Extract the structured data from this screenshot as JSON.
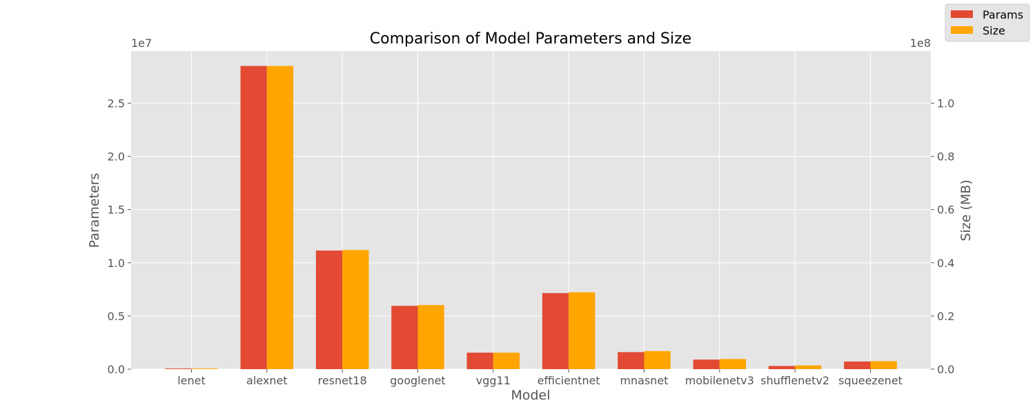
{
  "chart_data": {
    "type": "bar",
    "title": "Comparison of Model Parameters and Size",
    "xlabel": "Model",
    "ylabel_left": "Parameters",
    "ylabel_right": "Size (MB)",
    "left_offset_label": "1e7",
    "right_offset_label": "1e8",
    "ylim_left": [
      0,
      29900000
    ],
    "ylim_right": [
      0,
      119600000
    ],
    "left_ticks": [
      0,
      5000000,
      10000000,
      15000000,
      20000000,
      25000000
    ],
    "left_tick_labels": [
      "0.0",
      "0.5",
      "1.0",
      "1.5",
      "2.0",
      "2.5"
    ],
    "right_ticks": [
      0,
      20000000,
      40000000,
      60000000,
      80000000,
      100000000
    ],
    "right_tick_labels": [
      "0.0",
      "0.2",
      "0.4",
      "0.6",
      "0.8",
      "1.0"
    ],
    "categories": [
      "lenet",
      "alexnet",
      "resnet18",
      "googlenet",
      "vgg11",
      "efficientnet",
      "mnasnet",
      "mobilenetv3",
      "shufflenetv2",
      "squeezenet"
    ],
    "grid": true,
    "legend_position": "top-right",
    "series": [
      {
        "name": "Params",
        "axis": "left",
        "color": "#E24A33",
        "values": [
          60000,
          28500000,
          11150000,
          5950000,
          1550000,
          7150000,
          1600000,
          900000,
          300000,
          720000
        ]
      },
      {
        "name": "Size",
        "axis": "right",
        "color": "#FFA500",
        "values": [
          240000,
          114000000,
          44800000,
          24100000,
          6200000,
          28900000,
          6800000,
          3800000,
          1400000,
          3000000
        ]
      }
    ]
  }
}
